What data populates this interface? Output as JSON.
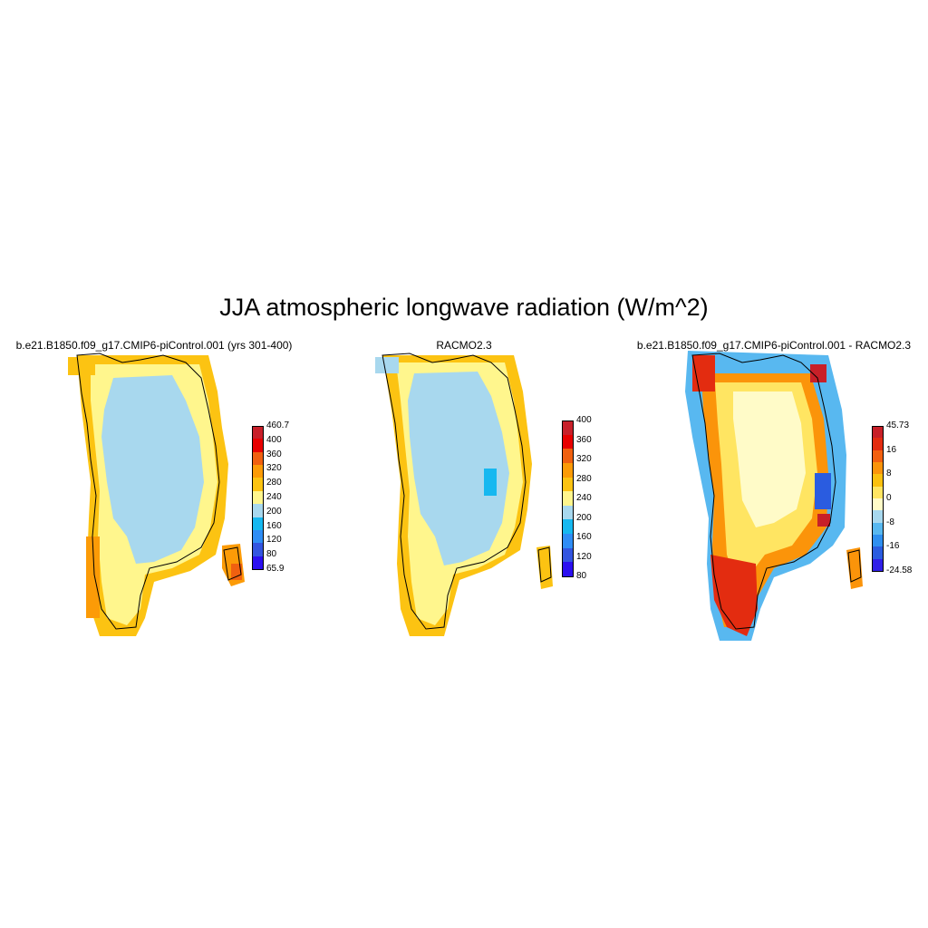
{
  "figure": {
    "title": "JJA atmospheric longwave radiation (W/m^2)"
  },
  "panels": [
    {
      "id": "model",
      "title": "b.e21.B1850.f09_g17.CMIP6-piControl.001 (yrs 301-400)",
      "colorbar": {
        "colors": [
          "#2b0ff0",
          "#3355e0",
          "#2f8df5",
          "#16b8f0",
          "#a8d8ee",
          "#fff68d",
          "#fcc312",
          "#fc9b07",
          "#f06010",
          "#e80000",
          "#c8202a"
        ],
        "labels": [
          "65.9",
          "80",
          "120",
          "160",
          "200",
          "240",
          "280",
          "320",
          "360",
          "400",
          "460.7"
        ]
      }
    },
    {
      "id": "obs",
      "title": "RACMO2.3",
      "colorbar": {
        "colors": [
          "#2b0ff0",
          "#3355e0",
          "#2f8df5",
          "#16b8f0",
          "#a8d8ee",
          "#fff68d",
          "#fcc312",
          "#fc9b07",
          "#f06010",
          "#e80000",
          "#c8202a"
        ],
        "labels": [
          "80",
          "120",
          "160",
          "200",
          "240",
          "280",
          "320",
          "360",
          "400"
        ]
      }
    },
    {
      "id": "diff",
      "title": "b.e21.B1850.f09_g17.CMIP6-piControl.001 - RACMO2.3",
      "colorbar": {
        "colors": [
          "#3020e8",
          "#2a5ce0",
          "#2e8ff0",
          "#58b8f0",
          "#a8d8ee",
          "#fffbc8",
          "#ffe562",
          "#fbc00e",
          "#fb940a",
          "#f26010",
          "#e32c10",
          "#c82028"
        ],
        "labels": [
          "-24.58",
          "-16",
          "-8",
          "0",
          "8",
          "16",
          "45.73"
        ]
      }
    }
  ]
}
